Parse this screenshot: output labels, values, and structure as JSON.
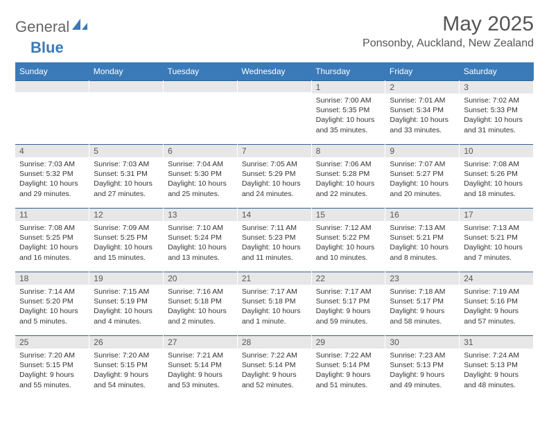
{
  "brand": {
    "part1": "General",
    "part2": "Blue"
  },
  "title": "May 2025",
  "location": "Ponsonby, Auckland, New Zealand",
  "colors": {
    "header_bg": "#3a7ab8",
    "header_fg": "#ffffff",
    "daynum_bg": "#e7e7e7",
    "border": "#2f5f8f",
    "text": "#333333",
    "title": "#555555"
  },
  "weekdays": [
    "Sunday",
    "Monday",
    "Tuesday",
    "Wednesday",
    "Thursday",
    "Friday",
    "Saturday"
  ],
  "weeks": [
    [
      null,
      null,
      null,
      null,
      {
        "n": "1",
        "sr": "Sunrise: 7:00 AM",
        "ss": "Sunset: 5:35 PM",
        "dl": "Daylight: 10 hours and 35 minutes."
      },
      {
        "n": "2",
        "sr": "Sunrise: 7:01 AM",
        "ss": "Sunset: 5:34 PM",
        "dl": "Daylight: 10 hours and 33 minutes."
      },
      {
        "n": "3",
        "sr": "Sunrise: 7:02 AM",
        "ss": "Sunset: 5:33 PM",
        "dl": "Daylight: 10 hours and 31 minutes."
      }
    ],
    [
      {
        "n": "4",
        "sr": "Sunrise: 7:03 AM",
        "ss": "Sunset: 5:32 PM",
        "dl": "Daylight: 10 hours and 29 minutes."
      },
      {
        "n": "5",
        "sr": "Sunrise: 7:03 AM",
        "ss": "Sunset: 5:31 PM",
        "dl": "Daylight: 10 hours and 27 minutes."
      },
      {
        "n": "6",
        "sr": "Sunrise: 7:04 AM",
        "ss": "Sunset: 5:30 PM",
        "dl": "Daylight: 10 hours and 25 minutes."
      },
      {
        "n": "7",
        "sr": "Sunrise: 7:05 AM",
        "ss": "Sunset: 5:29 PM",
        "dl": "Daylight: 10 hours and 24 minutes."
      },
      {
        "n": "8",
        "sr": "Sunrise: 7:06 AM",
        "ss": "Sunset: 5:28 PM",
        "dl": "Daylight: 10 hours and 22 minutes."
      },
      {
        "n": "9",
        "sr": "Sunrise: 7:07 AM",
        "ss": "Sunset: 5:27 PM",
        "dl": "Daylight: 10 hours and 20 minutes."
      },
      {
        "n": "10",
        "sr": "Sunrise: 7:08 AM",
        "ss": "Sunset: 5:26 PM",
        "dl": "Daylight: 10 hours and 18 minutes."
      }
    ],
    [
      {
        "n": "11",
        "sr": "Sunrise: 7:08 AM",
        "ss": "Sunset: 5:25 PM",
        "dl": "Daylight: 10 hours and 16 minutes."
      },
      {
        "n": "12",
        "sr": "Sunrise: 7:09 AM",
        "ss": "Sunset: 5:25 PM",
        "dl": "Daylight: 10 hours and 15 minutes."
      },
      {
        "n": "13",
        "sr": "Sunrise: 7:10 AM",
        "ss": "Sunset: 5:24 PM",
        "dl": "Daylight: 10 hours and 13 minutes."
      },
      {
        "n": "14",
        "sr": "Sunrise: 7:11 AM",
        "ss": "Sunset: 5:23 PM",
        "dl": "Daylight: 10 hours and 11 minutes."
      },
      {
        "n": "15",
        "sr": "Sunrise: 7:12 AM",
        "ss": "Sunset: 5:22 PM",
        "dl": "Daylight: 10 hours and 10 minutes."
      },
      {
        "n": "16",
        "sr": "Sunrise: 7:13 AM",
        "ss": "Sunset: 5:21 PM",
        "dl": "Daylight: 10 hours and 8 minutes."
      },
      {
        "n": "17",
        "sr": "Sunrise: 7:13 AM",
        "ss": "Sunset: 5:21 PM",
        "dl": "Daylight: 10 hours and 7 minutes."
      }
    ],
    [
      {
        "n": "18",
        "sr": "Sunrise: 7:14 AM",
        "ss": "Sunset: 5:20 PM",
        "dl": "Daylight: 10 hours and 5 minutes."
      },
      {
        "n": "19",
        "sr": "Sunrise: 7:15 AM",
        "ss": "Sunset: 5:19 PM",
        "dl": "Daylight: 10 hours and 4 minutes."
      },
      {
        "n": "20",
        "sr": "Sunrise: 7:16 AM",
        "ss": "Sunset: 5:18 PM",
        "dl": "Daylight: 10 hours and 2 minutes."
      },
      {
        "n": "21",
        "sr": "Sunrise: 7:17 AM",
        "ss": "Sunset: 5:18 PM",
        "dl": "Daylight: 10 hours and 1 minute."
      },
      {
        "n": "22",
        "sr": "Sunrise: 7:17 AM",
        "ss": "Sunset: 5:17 PM",
        "dl": "Daylight: 9 hours and 59 minutes."
      },
      {
        "n": "23",
        "sr": "Sunrise: 7:18 AM",
        "ss": "Sunset: 5:17 PM",
        "dl": "Daylight: 9 hours and 58 minutes."
      },
      {
        "n": "24",
        "sr": "Sunrise: 7:19 AM",
        "ss": "Sunset: 5:16 PM",
        "dl": "Daylight: 9 hours and 57 minutes."
      }
    ],
    [
      {
        "n": "25",
        "sr": "Sunrise: 7:20 AM",
        "ss": "Sunset: 5:15 PM",
        "dl": "Daylight: 9 hours and 55 minutes."
      },
      {
        "n": "26",
        "sr": "Sunrise: 7:20 AM",
        "ss": "Sunset: 5:15 PM",
        "dl": "Daylight: 9 hours and 54 minutes."
      },
      {
        "n": "27",
        "sr": "Sunrise: 7:21 AM",
        "ss": "Sunset: 5:14 PM",
        "dl": "Daylight: 9 hours and 53 minutes."
      },
      {
        "n": "28",
        "sr": "Sunrise: 7:22 AM",
        "ss": "Sunset: 5:14 PM",
        "dl": "Daylight: 9 hours and 52 minutes."
      },
      {
        "n": "29",
        "sr": "Sunrise: 7:22 AM",
        "ss": "Sunset: 5:14 PM",
        "dl": "Daylight: 9 hours and 51 minutes."
      },
      {
        "n": "30",
        "sr": "Sunrise: 7:23 AM",
        "ss": "Sunset: 5:13 PM",
        "dl": "Daylight: 9 hours and 49 minutes."
      },
      {
        "n": "31",
        "sr": "Sunrise: 7:24 AM",
        "ss": "Sunset: 5:13 PM",
        "dl": "Daylight: 9 hours and 48 minutes."
      }
    ]
  ]
}
